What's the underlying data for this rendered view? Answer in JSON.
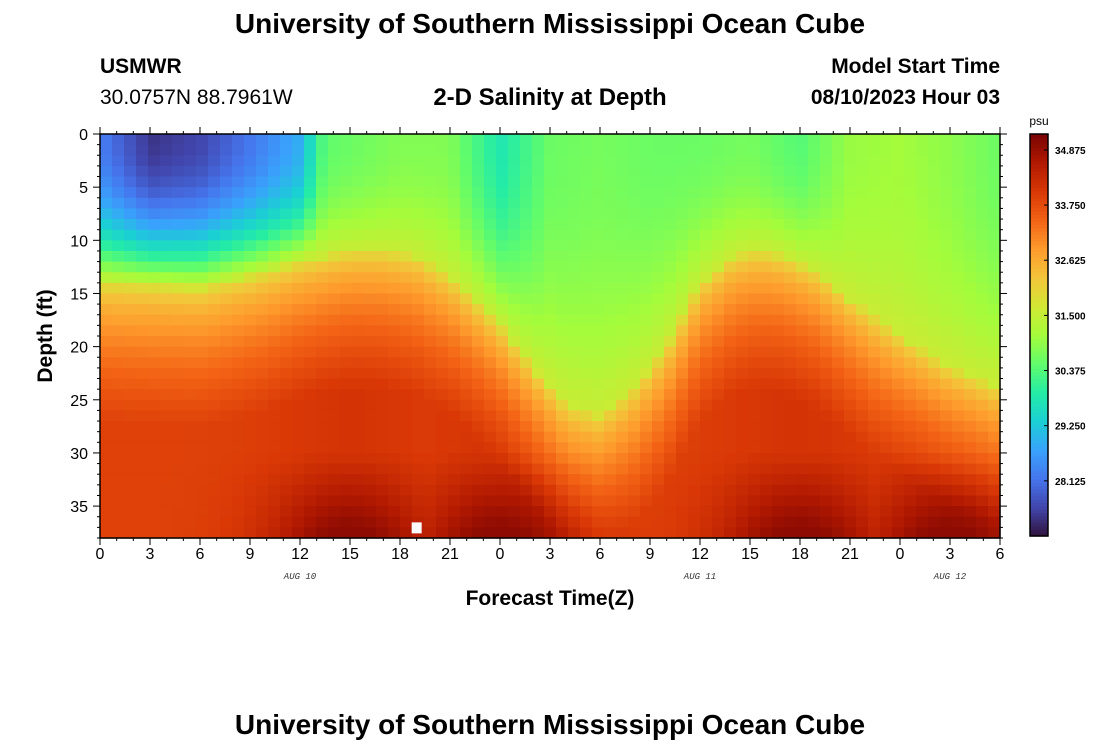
{
  "header": {
    "title": "University of Southern Mississippi Ocean Cube",
    "station_id": "USMWR",
    "coords": "30.0757N  88.7961W",
    "plot_title": "2-D Salinity at Depth",
    "model_start_label": "Model Start Time",
    "model_start_value": "08/10/2023 Hour 03"
  },
  "footer": {
    "title": "University of Southern Mississippi Ocean Cube"
  },
  "colors": {
    "colormap": [
      "#30123b",
      "#4145ab",
      "#4675ed",
      "#39a2fc",
      "#1bcfd4",
      "#24eca6",
      "#61fc6c",
      "#a4fc3b",
      "#d1e834",
      "#f3c63a",
      "#fe9b2d",
      "#f36315",
      "#d93806",
      "#b11901",
      "#7a0403"
    ],
    "marker": "#ffffff"
  },
  "chart_data": {
    "type": "heatmap",
    "title": "2-D Salinity at Depth",
    "xlabel": "Forecast Time(Z)",
    "ylabel": "Depth (ft)",
    "x_tick_labels": [
      "0",
      "3",
      "6",
      "9",
      "12",
      "15",
      "18",
      "21",
      "0",
      "3",
      "6",
      "9",
      "12",
      "15",
      "18",
      "21",
      "0",
      "3",
      "6"
    ],
    "x_date_labels": [
      {
        "label": "AUG 10",
        "at_hour": 12
      },
      {
        "label": "AUG 11",
        "at_hour": 36
      },
      {
        "label": "AUG 12",
        "at_hour": 51
      }
    ],
    "xlim_hours": [
      0,
      54
    ],
    "y_tick_labels": [
      "0",
      "5",
      "10",
      "15",
      "20",
      "25",
      "30",
      "35"
    ],
    "ylim_ft": [
      0,
      38
    ],
    "y_inverted": true,
    "colorbar": {
      "unit": "psu",
      "vmin": 27.0,
      "vmax": 35.2,
      "ticks": [
        "34.875",
        "33.750",
        "32.625",
        "31.500",
        "30.375",
        "29.250",
        "28.125"
      ]
    },
    "surface_profile_hours": [
      0,
      3,
      6,
      9,
      12,
      13.5,
      15,
      18,
      21,
      24,
      27,
      30,
      33,
      36,
      39,
      42,
      45,
      48,
      51,
      54
    ],
    "surface_profile_psu": [
      28.3,
      27.4,
      27.6,
      28.2,
      28.9,
      30.5,
      30.6,
      30.8,
      30.8,
      29.8,
      30.6,
      30.7,
      30.6,
      30.6,
      30.7,
      30.4,
      31.0,
      31.1,
      30.9,
      30.6
    ],
    "halocline_profile_hours": [
      0,
      6,
      10,
      12,
      15,
      17,
      19,
      21,
      24,
      26,
      28,
      30,
      32,
      34,
      36,
      38,
      39.5,
      41,
      43,
      45,
      48,
      51,
      54
    ],
    "halocline_depth_ft": [
      14,
      14.5,
      13,
      12,
      11,
      11,
      11.5,
      13.5,
      18,
      22,
      25.5,
      26.5,
      24,
      20,
      14,
      11.5,
      11,
      11.5,
      13,
      15.5,
      19,
      22,
      24
    ],
    "max_salinity_psu": 35.0,
    "bottom_max_hours": [
      15,
      24,
      42,
      51
    ],
    "marker_point": {
      "hour": 19,
      "depth_ft": 37
    }
  }
}
